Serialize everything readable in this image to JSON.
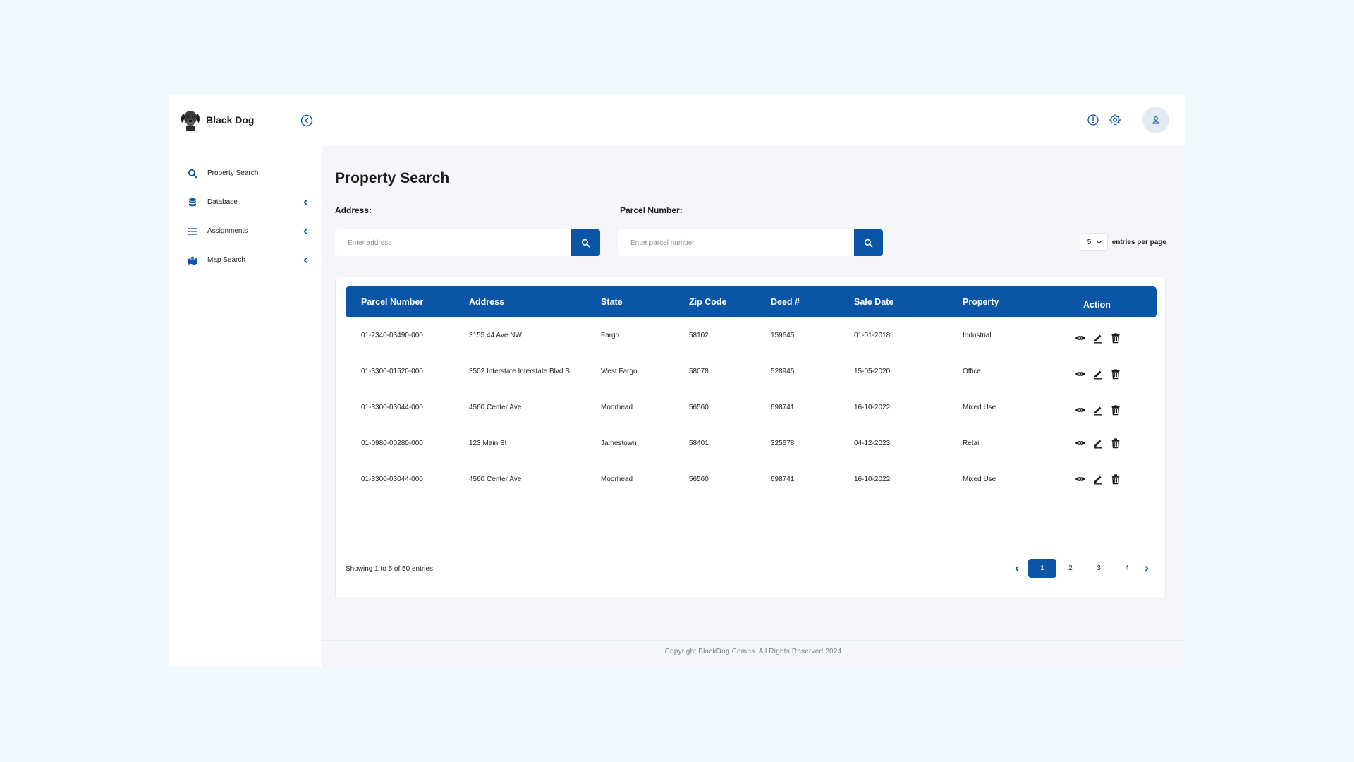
{
  "app": {
    "brand": "Black Dog"
  },
  "sidebar": {
    "items": [
      {
        "label": "Property Search",
        "icon": "search-icon",
        "has_chevron": false
      },
      {
        "label": "Database",
        "icon": "database-icon",
        "has_chevron": true
      },
      {
        "label": "Assignments",
        "icon": "list-icon",
        "has_chevron": true
      },
      {
        "label": "Map Search",
        "icon": "map-icon",
        "has_chevron": true
      }
    ]
  },
  "header": {
    "icons": [
      "info-icon",
      "gear-icon",
      "user-icon"
    ]
  },
  "main": {
    "title": "Property Search",
    "address_label": "Address:",
    "address_placeholder": "Enter address",
    "parcel_label": "Parcel Number:",
    "parcel_placeholder": "Enter parcel number",
    "entries_value": "5",
    "entries_label": "entries per page"
  },
  "table": {
    "columns": [
      "Parcel Number",
      "Address",
      "State",
      "Zip Code",
      "Deed #",
      "Sale Date",
      "Property",
      "Action"
    ],
    "rows": [
      [
        "01-2340-03490-000",
        "3155 44 Ave NW",
        "Fargo",
        "58102",
        "159645",
        "01-01-2018",
        "Industrial"
      ],
      [
        "01-3300-01520-000",
        "3502 Interstate Interstate Blvd S",
        "West Fargo",
        "58078",
        "528945",
        "15-05-2020",
        "Office"
      ],
      [
        "01-3300-03044-000",
        "4560 Center Ave",
        "Moorhead",
        "56560",
        "698741",
        "16-10-2022",
        "Mixed Use"
      ],
      [
        "01-0980-00280-000",
        "123 Main St",
        "Jamestown",
        "58401",
        "325678",
        "04-12-2023",
        "Retail"
      ],
      [
        "01-3300-03044-000",
        "4560 Center Ave",
        "Moorhead",
        "56560",
        "698741",
        "16-10-2022",
        "Mixed Use"
      ]
    ],
    "showing": "Showing 1 to 5 of 50 entries",
    "pages": [
      "1",
      "2",
      "3",
      "4"
    ],
    "current_page": "1"
  },
  "footer": {
    "text": "Copyright BlackDog Comps. All Rights Reserved 2024"
  },
  "colors": {
    "accent": "#0a55a6",
    "background": "#f0f9fe",
    "content_bg": "#f4f6f9"
  }
}
